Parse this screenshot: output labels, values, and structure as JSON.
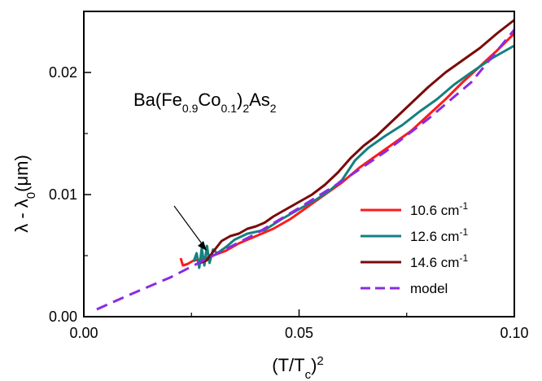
{
  "chart_data": {
    "type": "line",
    "annotation": {
      "base1": "Ba(Fe",
      "sub1": "0.9",
      "mid": "Co",
      "sub2": "0.1",
      "close": ")",
      "sub3": "2",
      "tail": "As",
      "sub4": "2"
    },
    "xlabel": {
      "main": "(T/T",
      "sub": "c",
      "close": ")",
      "sup": "2"
    },
    "ylabel": {
      "a": "λ - λ",
      "sub": "0",
      "b": "(μm)"
    },
    "xlim": [
      0.0,
      0.1
    ],
    "ylim": [
      0.0,
      0.025
    ],
    "xticks": [
      "0.00",
      "0.05",
      "0.10"
    ],
    "xtick_values": [
      0.0,
      0.05,
      0.1
    ],
    "yticks": [
      "0.00",
      "0.01",
      "0.02"
    ],
    "ytick_values": [
      0.0,
      0.01,
      0.02
    ],
    "legend_position": "lower-right",
    "series": [
      {
        "name": "10.6 cm",
        "name_sup": "-1",
        "color": "#ff1a1a",
        "dash": false,
        "points": [
          [
            0.0225,
            0.0048
          ],
          [
            0.023,
            0.0042
          ],
          [
            0.024,
            0.0043
          ],
          [
            0.0255,
            0.0046
          ],
          [
            0.0275,
            0.0047
          ],
          [
            0.03,
            0.005
          ],
          [
            0.033,
            0.0054
          ],
          [
            0.036,
            0.006
          ],
          [
            0.04,
            0.0066
          ],
          [
            0.044,
            0.0072
          ],
          [
            0.048,
            0.008
          ],
          [
            0.052,
            0.009
          ],
          [
            0.056,
            0.01
          ],
          [
            0.06,
            0.011
          ],
          [
            0.064,
            0.0122
          ],
          [
            0.068,
            0.0132
          ],
          [
            0.072,
            0.0142
          ],
          [
            0.076,
            0.0152
          ],
          [
            0.08,
            0.0165
          ],
          [
            0.084,
            0.0178
          ],
          [
            0.088,
            0.0192
          ],
          [
            0.092,
            0.0205
          ],
          [
            0.096,
            0.0218
          ],
          [
            0.1,
            0.0232
          ]
        ]
      },
      {
        "name": "12.6 cm",
        "name_sup": "-1",
        "color": "#148080",
        "dash": false,
        "points": [
          [
            0.0255,
            0.0045
          ],
          [
            0.0262,
            0.0052
          ],
          [
            0.0268,
            0.004
          ],
          [
            0.0274,
            0.0056
          ],
          [
            0.028,
            0.0042
          ],
          [
            0.0286,
            0.0058
          ],
          [
            0.0292,
            0.0044
          ],
          [
            0.03,
            0.0055
          ],
          [
            0.031,
            0.0052
          ],
          [
            0.033,
            0.0057
          ],
          [
            0.035,
            0.0063
          ],
          [
            0.038,
            0.0068
          ],
          [
            0.042,
            0.0071
          ],
          [
            0.046,
            0.008
          ],
          [
            0.05,
            0.0088
          ],
          [
            0.054,
            0.0096
          ],
          [
            0.057,
            0.0103
          ],
          [
            0.06,
            0.0112
          ],
          [
            0.063,
            0.0128
          ],
          [
            0.066,
            0.0138
          ],
          [
            0.07,
            0.0148
          ],
          [
            0.074,
            0.0157
          ],
          [
            0.078,
            0.0168
          ],
          [
            0.082,
            0.0178
          ],
          [
            0.086,
            0.019
          ],
          [
            0.09,
            0.02
          ],
          [
            0.095,
            0.0212
          ],
          [
            0.1,
            0.0222
          ]
        ]
      },
      {
        "name": "14.6 cm",
        "name_sup": "-1",
        "color": "#7a0a0a",
        "dash": false,
        "points": [
          [
            0.027,
            0.0044
          ],
          [
            0.0285,
            0.0046
          ],
          [
            0.03,
            0.0053
          ],
          [
            0.032,
            0.0062
          ],
          [
            0.034,
            0.0066
          ],
          [
            0.036,
            0.0068
          ],
          [
            0.038,
            0.0072
          ],
          [
            0.04,
            0.0074
          ],
          [
            0.042,
            0.0077
          ],
          [
            0.044,
            0.0082
          ],
          [
            0.047,
            0.0088
          ],
          [
            0.05,
            0.0094
          ],
          [
            0.053,
            0.01
          ],
          [
            0.056,
            0.0108
          ],
          [
            0.059,
            0.0118
          ],
          [
            0.062,
            0.013
          ],
          [
            0.065,
            0.014
          ],
          [
            0.068,
            0.0148
          ],
          [
            0.071,
            0.0158
          ],
          [
            0.074,
            0.0168
          ],
          [
            0.077,
            0.0178
          ],
          [
            0.08,
            0.0188
          ],
          [
            0.084,
            0.02
          ],
          [
            0.088,
            0.021
          ],
          [
            0.092,
            0.022
          ],
          [
            0.096,
            0.0232
          ],
          [
            0.1,
            0.0243
          ]
        ]
      },
      {
        "name": "model",
        "name_sup": "",
        "color": "#8a2be2",
        "dash": true,
        "points": [
          [
            0.003,
            0.0006
          ],
          [
            0.01,
            0.0017
          ],
          [
            0.02,
            0.0032
          ],
          [
            0.03,
            0.005
          ],
          [
            0.04,
            0.0068
          ],
          [
            0.05,
            0.0089
          ],
          [
            0.06,
            0.0111
          ],
          [
            0.07,
            0.0135
          ],
          [
            0.08,
            0.0162
          ],
          [
            0.09,
            0.0192
          ],
          [
            0.1,
            0.0235
          ]
        ]
      }
    ]
  }
}
